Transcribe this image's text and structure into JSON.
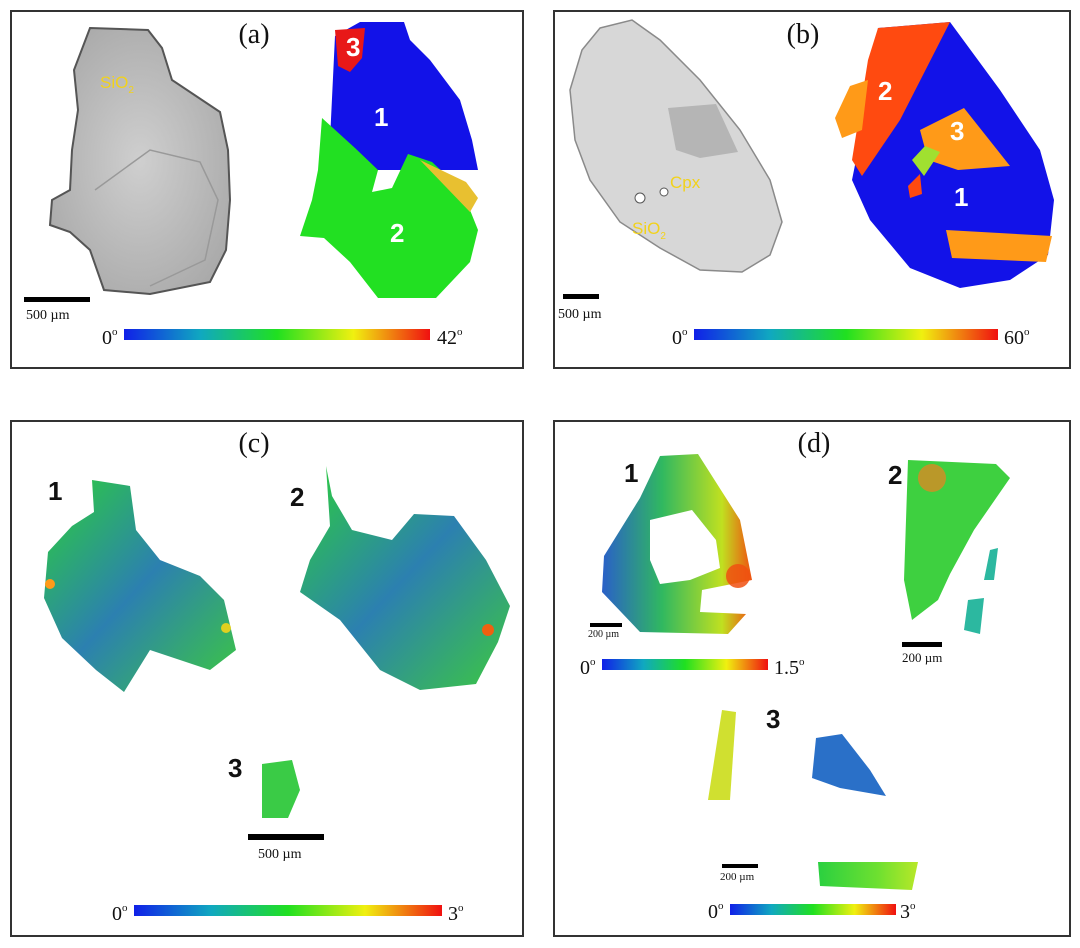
{
  "panels": {
    "a": {
      "label": "(a)",
      "sio2": "SiO",
      "sio2_sub": "2",
      "grains": [
        "3",
        "1",
        "2"
      ],
      "scale": "500 µm",
      "bar_min": "0",
      "bar_max": "42",
      "deg": "o"
    },
    "b": {
      "label": "(b)",
      "cpx": "Cpx",
      "sio2": "SiO",
      "sio2_sub": "2",
      "grains": [
        "2",
        "3",
        "1"
      ],
      "scale": "500 µm",
      "bar_min": "0",
      "bar_max": "60",
      "deg": "o"
    },
    "c": {
      "label": "(c)",
      "grains": [
        "1",
        "2",
        "3"
      ],
      "scale": "500 µm",
      "bar_min": "0",
      "bar_max": "3",
      "deg": "o"
    },
    "d": {
      "label": "(d)",
      "grains": [
        "1",
        "2",
        "3"
      ],
      "scale_1": "200 µm",
      "scale_2": "200 µm",
      "scale_3": "200 µm",
      "bar1_min": "0",
      "bar1_max": "1.5",
      "bar2_min": "0",
      "bar2_max": "3",
      "deg": "o"
    }
  },
  "colors": {
    "text_yellow": "#f2d21a",
    "blue": "#1030e0",
    "green": "#22e022",
    "red": "#e81818",
    "orange": "#ff9a18",
    "redorange": "#ff4a10"
  }
}
